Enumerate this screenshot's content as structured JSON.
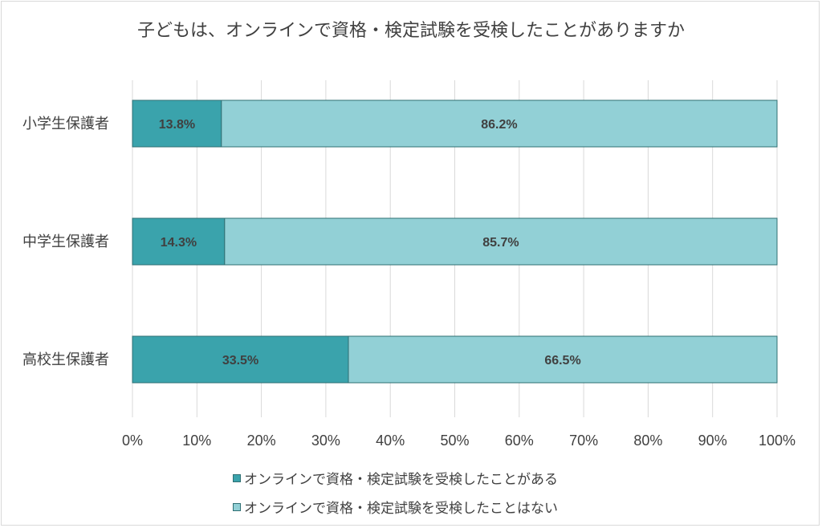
{
  "chart_data": {
    "type": "bar",
    "orientation": "horizontal",
    "stacked": "percent",
    "title": "子どもは、オンラインで資格・検定試験を受検したことがありますか",
    "categories": [
      "小学生保護者",
      "中学生保護者",
      "高校生保護者"
    ],
    "series": [
      {
        "name": "オンラインで資格・検定試験を受検したことがある",
        "values": [
          13.8,
          14.3,
          33.5
        ],
        "labels": [
          "13.8%",
          "14.3%",
          "33.5%"
        ],
        "color": "#3aa3ac"
      },
      {
        "name": "オンラインで資格・検定試験を受検したことはない",
        "values": [
          86.2,
          85.7,
          66.5
        ],
        "labels": [
          "86.2%",
          "85.7%",
          "66.5%"
        ],
        "color": "#92d0d6"
      }
    ],
    "xlim": [
      0,
      100
    ],
    "xticks": [
      "0%",
      "10%",
      "20%",
      "30%",
      "40%",
      "50%",
      "60%",
      "70%",
      "80%",
      "90%",
      "100%"
    ],
    "grid": "vertical",
    "legend_position": "bottom"
  }
}
